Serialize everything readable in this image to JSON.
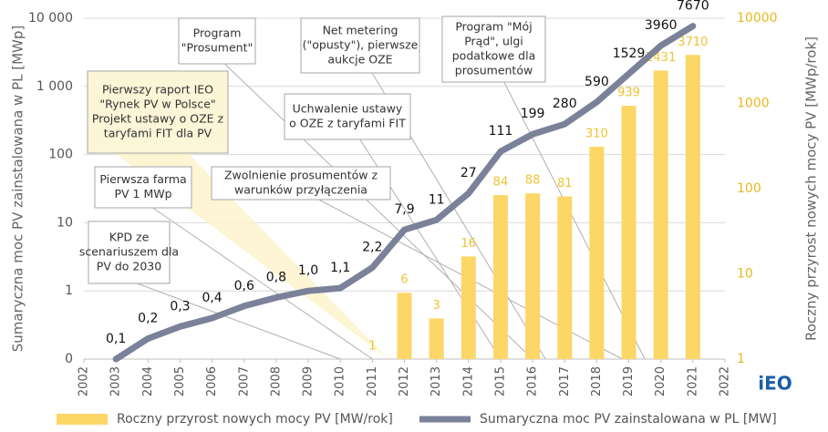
{
  "chart_data": {
    "type": "combo",
    "x": [
      2003,
      2004,
      2005,
      2006,
      2007,
      2008,
      2009,
      2010,
      2011,
      2012,
      2013,
      2014,
      2015,
      2016,
      2017,
      2018,
      2019,
      2020,
      2021
    ],
    "xlim": [
      2002,
      2022
    ],
    "xticks": [
      2002,
      2003,
      2004,
      2005,
      2006,
      2007,
      2008,
      2009,
      2010,
      2011,
      2012,
      2013,
      2014,
      2015,
      2016,
      2017,
      2018,
      2019,
      2020,
      2021,
      2022
    ],
    "ylim": [
      0.1,
      10000
    ],
    "yticks": [
      {
        "value": 0.1,
        "label": "0"
      },
      1,
      10,
      100,
      {
        "value": 1000,
        "label": "1 000"
      },
      {
        "value": 10000,
        "label": "10 000"
      }
    ],
    "y2lim": [
      1,
      10000
    ],
    "y2ticks": [
      1,
      10,
      100,
      1000,
      10000
    ],
    "log_scale": true,
    "grid": true,
    "y_label": "Sumaryczna moc PV zainstalowana w PL [MWp]",
    "y2_label": "Roczny przyrost nowych mocy PV [MWp/rok]",
    "legend": "bottom",
    "series": [
      {
        "name": "Roczny przyrost nowych mocy PV [MW/rok]",
        "type": "bar",
        "axis": "y2",
        "color": "#fcd667",
        "label_color": "#f0c232",
        "values": [
          null,
          null,
          null,
          null,
          null,
          null,
          null,
          null,
          1,
          6,
          3,
          16,
          84,
          88,
          81,
          310,
          939,
          2431,
          3710
        ]
      },
      {
        "name": "Sumaryczna moc PV zainstalowana w PL [MW]",
        "type": "line",
        "color": "#7b8199",
        "label_color": "#111111",
        "values": [
          0.1,
          0.2,
          0.3,
          0.4,
          0.6,
          0.8,
          1.0,
          1.1,
          2.2,
          7.9,
          11,
          27,
          111,
          199,
          280,
          590,
          1529,
          3960,
          7670
        ],
        "value_labels": [
          "0,1",
          "0,2",
          "0,3",
          "0,4",
          "0,6",
          "0,8",
          "1,0",
          "1,1",
          "2,2",
          "7,9",
          "11",
          "27",
          "111",
          "199",
          "280",
          "590",
          "1529",
          "3960",
          "7670"
        ]
      }
    ],
    "annotations": [
      {
        "lines": [
          "Program",
          "\"Prosument\""
        ],
        "highlight": false
      },
      {
        "lines": [
          "Net metering",
          "(\"opusty\"), pierwsze",
          "aukcje OZE"
        ],
        "highlight": false
      },
      {
        "lines": [
          "Program \"Mój",
          "Prąd\", ulgi",
          "podatkowe dla",
          "prosumentów"
        ],
        "highlight": false
      },
      {
        "lines": [
          "Pierwszy raport IEO",
          "\"Rynek PV w Polsce\"",
          "Projekt ustawy o OZE z",
          "taryfami FIT dla PV"
        ],
        "highlight": true
      },
      {
        "lines": [
          "Uchwalenie ustawy",
          "o OZE z taryfami FIT"
        ],
        "highlight": false
      },
      {
        "lines": [
          "Pierwsza farma",
          "PV 1 MWp"
        ],
        "highlight": false
      },
      {
        "lines": [
          "Zwolnienie prosumentów z",
          "warunków przyłączenia"
        ],
        "highlight": false
      },
      {
        "lines": [
          "KPD ze",
          "scenariuszem dla",
          "PV do 2030"
        ],
        "highlight": false
      }
    ],
    "logo": "iEO"
  }
}
